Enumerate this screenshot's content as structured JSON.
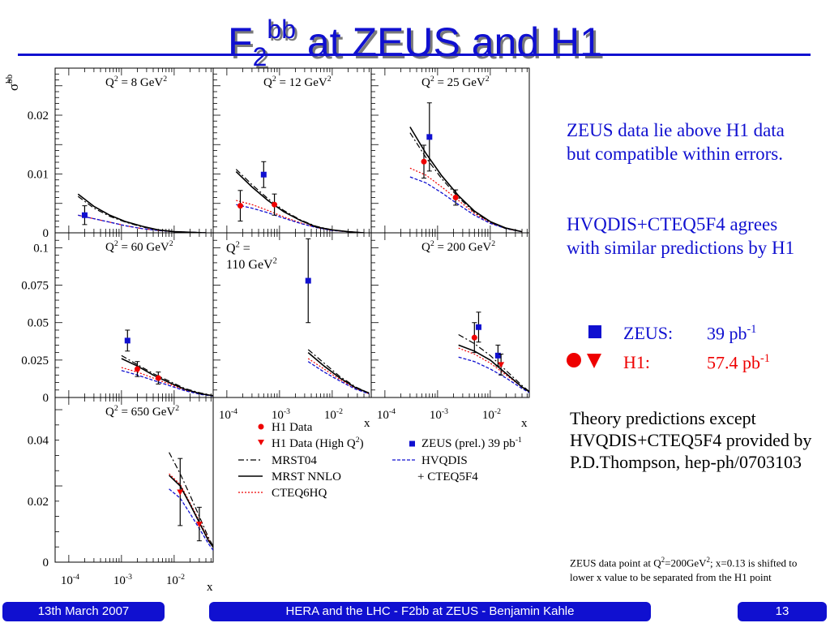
{
  "title": {
    "main": "F",
    "sub": "2",
    "sup": "bb",
    "rest": " at ZEUS and H1"
  },
  "notes": {
    "note1": "ZEUS data lie above H1 data but compatible within errors.",
    "note2": "HVQDIS+CTEQ5F4 agrees with similar predictions by H1"
  },
  "cross_sections": {
    "zeus_label": "ZEUS:",
    "zeus_value": "39 pb",
    "zeus_unit_exp": "-1",
    "h1_label": "H1:",
    "h1_value": "57.4 pb",
    "h1_unit_exp": "-1"
  },
  "theory_note": "Theory predictions except HVQDIS+CTEQ5F4 provided by P.D.Thompson, hep-ph/0703103",
  "point_note": {
    "a": "ZEUS data point at Q",
    "b": "=200GeV",
    "c": "; x=0.13 is shifted to lower x value to be separated from the H1 point",
    "exp": "2"
  },
  "footer": {
    "date": "13th March 2007",
    "center": "HERA and the LHC - F2bb at ZEUS - Benjamin Kahle",
    "page": "13"
  },
  "colors": {
    "accent": "#1010d0",
    "h1": "#ee0000",
    "zeus": "#1010d0",
    "mrst04": "#000000",
    "mrstnnlo": "#000000",
    "cteq6hq": "#ee0000",
    "hvqdis": "#1010d0"
  },
  "chart_data": {
    "type": "scatter",
    "ylabel": "σ̃",
    "ylabel_sup": "bb",
    "xlabel": "x",
    "x_scale": "log",
    "x_ticks": [
      "10",
      "10",
      "10"
    ],
    "x_tick_exps": [
      "-4",
      "-3",
      "-2"
    ],
    "legend": {
      "h1": "H1 Data",
      "h1_high_a": "H1 Data (High Q",
      "h1_high_b": ")",
      "h1_high_exp": "2",
      "zeus": "ZEUS (prel.) 39 pb",
      "zeus_exp": "-1",
      "mrst04": "MRST04",
      "mrstnnlo": "MRST NNLO",
      "cteq6hq": "CTEQ6HQ",
      "hvqdis": "HVQDIS",
      "cteq5f4": "+ CTEQ5F4"
    },
    "panels": [
      {
        "q2_a": "Q",
        "q2_exp": "2",
        "q2_b": " = 8 GeV",
        "q2_b_exp": "2",
        "yticks": [
          "0.02",
          "0.01",
          "0"
        ],
        "ylim": [
          0,
          0.028
        ],
        "h1": [],
        "h1_high": [],
        "zeus": [
          {
            "x": 0.0002,
            "y": 0.003,
            "err": 0.0016
          }
        ],
        "curves": {
          "x": [
            0.00015,
            0.0003,
            0.0006,
            0.0012,
            0.0025,
            0.005,
            0.01,
            0.02,
            0.04
          ],
          "mrst04": [
            0.0062,
            0.0042,
            0.0028,
            0.0018,
            0.001,
            0.0005,
            0.0002,
            0.0001,
            0.0
          ],
          "mrstnnlo": [
            0.0066,
            0.0045,
            0.003,
            0.0019,
            0.0011,
            0.0005,
            0.0002,
            0.0001,
            0.0
          ],
          "cteq6hq": [
            0.003,
            0.0024,
            0.0018,
            0.0012,
            0.0007,
            0.0004,
            0.0002,
            0.0001,
            0.0
          ],
          "hvqdis": [
            0.003,
            0.0024,
            0.0018,
            0.0012,
            0.0007,
            0.0004,
            0.0002,
            0.0001,
            0.0
          ]
        }
      },
      {
        "q2_a": "Q",
        "q2_exp": "2",
        "q2_b": " = 12 GeV",
        "q2_b_exp": "2",
        "yticks": [],
        "ylim": [
          0,
          0.028
        ],
        "h1": [
          {
            "x": 0.00018,
            "y": 0.0046,
            "err": 0.0026
          },
          {
            "x": 0.0008,
            "y": 0.0048,
            "err": 0.0018
          }
        ],
        "h1_high": [],
        "zeus": [
          {
            "x": 0.0005,
            "y": 0.0099,
            "err": 0.0022
          }
        ],
        "curves": {
          "x": [
            0.00015,
            0.0003,
            0.0006,
            0.0012,
            0.0025,
            0.005,
            0.01,
            0.02,
            0.04
          ],
          "mrst04": [
            0.0108,
            0.0082,
            0.0058,
            0.0038,
            0.0022,
            0.0011,
            0.0005,
            0.0002,
            0.0
          ],
          "mrstnnlo": [
            0.0104,
            0.0078,
            0.0055,
            0.0036,
            0.0021,
            0.001,
            0.0005,
            0.0002,
            0.0
          ],
          "cteq6hq": [
            0.0055,
            0.0048,
            0.0038,
            0.0027,
            0.0017,
            0.0009,
            0.0004,
            0.0002,
            0.0
          ],
          "hvqdis": [
            0.0048,
            0.0042,
            0.0034,
            0.0025,
            0.0016,
            0.0009,
            0.0004,
            0.0002,
            0.0
          ]
        }
      },
      {
        "q2_a": "Q",
        "q2_exp": "2",
        "q2_b": " = 25 GeV",
        "q2_b_exp": "2",
        "yticks": [],
        "ylim": [
          0,
          0.028
        ],
        "h1": [
          {
            "x": 0.00055,
            "y": 0.0121,
            "err": 0.0028
          },
          {
            "x": 0.0022,
            "y": 0.006,
            "err": 0.0013
          }
        ],
        "h1_high": [],
        "zeus": [
          {
            "x": 0.0007,
            "y": 0.0163,
            "err": 0.0058
          }
        ],
        "curves": {
          "x": [
            0.0003,
            0.0006,
            0.0012,
            0.0025,
            0.005,
            0.01,
            0.02,
            0.04
          ],
          "mrst04": [
            0.017,
            0.0128,
            0.0092,
            0.006,
            0.0035,
            0.0018,
            0.0007,
            0.0002
          ],
          "mrstnnlo": [
            0.018,
            0.0135,
            0.0097,
            0.0063,
            0.0037,
            0.0019,
            0.0008,
            0.0002
          ],
          "cteq6hq": [
            0.011,
            0.0098,
            0.0078,
            0.0055,
            0.0033,
            0.0017,
            0.0007,
            0.0002
          ],
          "hvqdis": [
            0.0095,
            0.0085,
            0.0068,
            0.0048,
            0.003,
            0.0016,
            0.0007,
            0.0002
          ]
        }
      },
      {
        "q2_a": "Q",
        "q2_exp": "2",
        "q2_b": " = 60 GeV",
        "q2_b_exp": "2",
        "yticks": [
          "0.1",
          "0.075",
          "0.05",
          "0.025",
          "0"
        ],
        "ylim": [
          0,
          0.11
        ],
        "h1": [
          {
            "x": 0.002,
            "y": 0.019,
            "err": 0.005
          },
          {
            "x": 0.005,
            "y": 0.013,
            "err": 0.004
          }
        ],
        "h1_high": [],
        "zeus": [
          {
            "x": 0.0013,
            "y": 0.038,
            "err": 0.007
          }
        ],
        "curves": {
          "x": [
            0.001,
            0.002,
            0.004,
            0.008,
            0.016,
            0.032,
            0.06
          ],
          "mrst04": [
            0.028,
            0.022,
            0.016,
            0.011,
            0.006,
            0.003,
            0.001
          ],
          "mrstnnlo": [
            0.026,
            0.021,
            0.015,
            0.01,
            0.0055,
            0.0025,
            0.001
          ],
          "cteq6hq": [
            0.02,
            0.017,
            0.013,
            0.009,
            0.005,
            0.0025,
            0.001
          ],
          "hvqdis": [
            0.018,
            0.015,
            0.0115,
            0.008,
            0.0045,
            0.002,
            0.0008
          ]
        }
      },
      {
        "q2_a": "Q",
        "q2_exp": "2",
        "q2_b": " =",
        "q2_b_exp": "",
        "q2_line2": "110 GeV",
        "q2_line2_exp": "2",
        "yticks": [],
        "ylim": [
          0,
          0.11
        ],
        "h1": [],
        "h1_high": [],
        "zeus": [
          {
            "x": 0.0035,
            "y": 0.078,
            "err": 0.028
          }
        ],
        "curves": {
          "x": [
            0.0035,
            0.007,
            0.014,
            0.028,
            0.05
          ],
          "mrst04": [
            0.032,
            0.023,
            0.014,
            0.007,
            0.003
          ],
          "mrstnnlo": [
            0.03,
            0.021,
            0.013,
            0.0065,
            0.003
          ],
          "cteq6hq": [
            0.026,
            0.019,
            0.012,
            0.006,
            0.0025
          ],
          "hvqdis": [
            0.024,
            0.017,
            0.011,
            0.0055,
            0.0025
          ]
        }
      },
      {
        "q2_a": "Q",
        "q2_exp": "2",
        "q2_b": " = 200 GeV",
        "q2_b_exp": "2",
        "yticks": [],
        "ylim": [
          0,
          0.11
        ],
        "h1": [
          {
            "x": 0.005,
            "y": 0.04,
            "err": 0.01
          }
        ],
        "h1_high": [
          {
            "x": 0.016,
            "y": 0.022,
            "err": 0.007
          }
        ],
        "zeus": [
          {
            "x": 0.006,
            "y": 0.047,
            "err": 0.01
          },
          {
            "x": 0.014,
            "y": 0.028,
            "err": 0.007
          }
        ],
        "curves": {
          "x": [
            0.0025,
            0.005,
            0.01,
            0.02,
            0.04,
            0.06
          ],
          "mrst04": [
            0.042,
            0.036,
            0.028,
            0.018,
            0.008,
            0.003
          ],
          "mrstnnlo": [
            0.035,
            0.031,
            0.025,
            0.016,
            0.007,
            0.003
          ],
          "cteq6hq": [
            0.033,
            0.029,
            0.023,
            0.015,
            0.007,
            0.003
          ],
          "hvqdis": [
            0.027,
            0.024,
            0.019,
            0.013,
            0.006,
            0.0025
          ]
        }
      },
      {
        "q2_a": "Q",
        "q2_exp": "2",
        "q2_b": " = 650 GeV",
        "q2_b_exp": "2",
        "yticks": [
          "0.04",
          "0.02",
          "0"
        ],
        "ylim": [
          0,
          0.054
        ],
        "h1": [],
        "h1_high": [
          {
            "x": 0.013,
            "y": 0.023,
            "err": 0.011
          },
          {
            "x": 0.03,
            "y": 0.0125,
            "err": 0.0055
          }
        ],
        "zeus": [],
        "curves": {
          "x": [
            0.008,
            0.013,
            0.02,
            0.03,
            0.045,
            0.06
          ],
          "mrst04": [
            0.036,
            0.029,
            0.022,
            0.015,
            0.008,
            0.004
          ],
          "mrstnnlo": [
            0.0285,
            0.025,
            0.019,
            0.013,
            0.007,
            0.004
          ],
          "cteq6hq": [
            0.029,
            0.0255,
            0.0195,
            0.0135,
            0.0075,
            0.0042
          ],
          "hvqdis": [
            0.024,
            0.021,
            0.016,
            0.011,
            0.006,
            0.003
          ]
        }
      }
    ]
  }
}
